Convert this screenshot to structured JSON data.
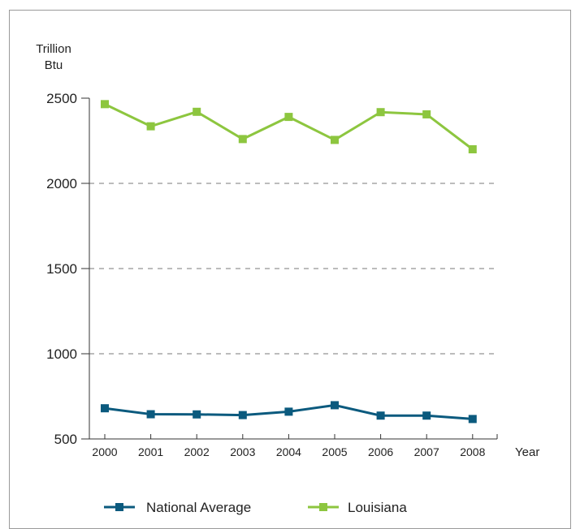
{
  "chart_data": {
    "type": "line",
    "title": "",
    "ylabel": [
      "Trillion",
      "Btu"
    ],
    "xlabel": "Year",
    "ylim": [
      500,
      2500
    ],
    "yticks": [
      "500",
      "1000",
      "1500",
      "2000",
      "2500"
    ],
    "grid": "dashed horizontal at 1000, 1500, 2000",
    "legend_position": "bottom",
    "categories": [
      "2000",
      "2001",
      "2002",
      "2003",
      "2004",
      "2005",
      "2006",
      "2007",
      "2008"
    ],
    "series": [
      {
        "name": "National Average",
        "color": "#0b5a7e",
        "values": [
          680,
          645,
          644,
          640,
          660,
          698,
          637,
          637,
          617
        ]
      },
      {
        "name": "Louisiana",
        "color": "#8dc63f",
        "values": [
          2465,
          2335,
          2420,
          2260,
          2390,
          2255,
          2418,
          2405,
          2200
        ]
      }
    ]
  }
}
